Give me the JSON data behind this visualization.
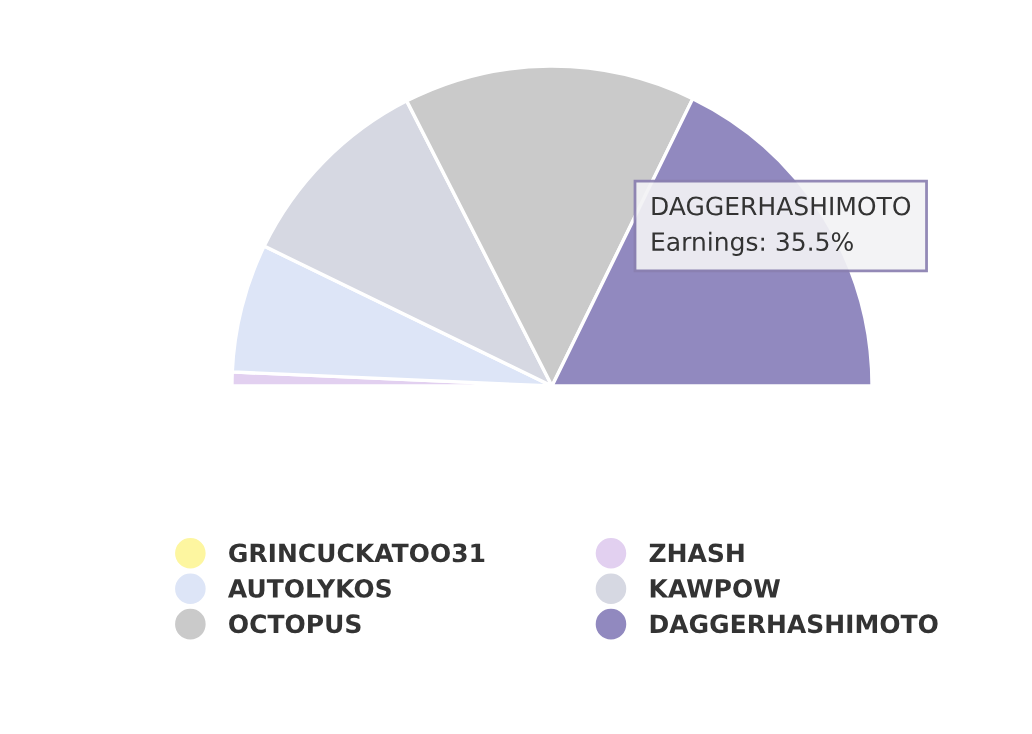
{
  "chart_data": {
    "type": "pie",
    "categories": [
      "GRINCUCKATOO31",
      "ZHASH",
      "AUTOLYKOS",
      "KAWPOW",
      "OCTOPUS",
      "DAGGERHASHIMOTO"
    ],
    "values": [
      0,
      1.4,
      13,
      20.6,
      29.5,
      35.5
    ],
    "colors": [
      "#fdf6a0",
      "#e2d0f0",
      "#dde5f7",
      "#d6d8e2",
      "#cacaca",
      "#9189bf"
    ],
    "annotations": [
      "DAGGERHASHIMOTO\nEarnings: 35.5%"
    ],
    "legend": "bottom"
  }
}
